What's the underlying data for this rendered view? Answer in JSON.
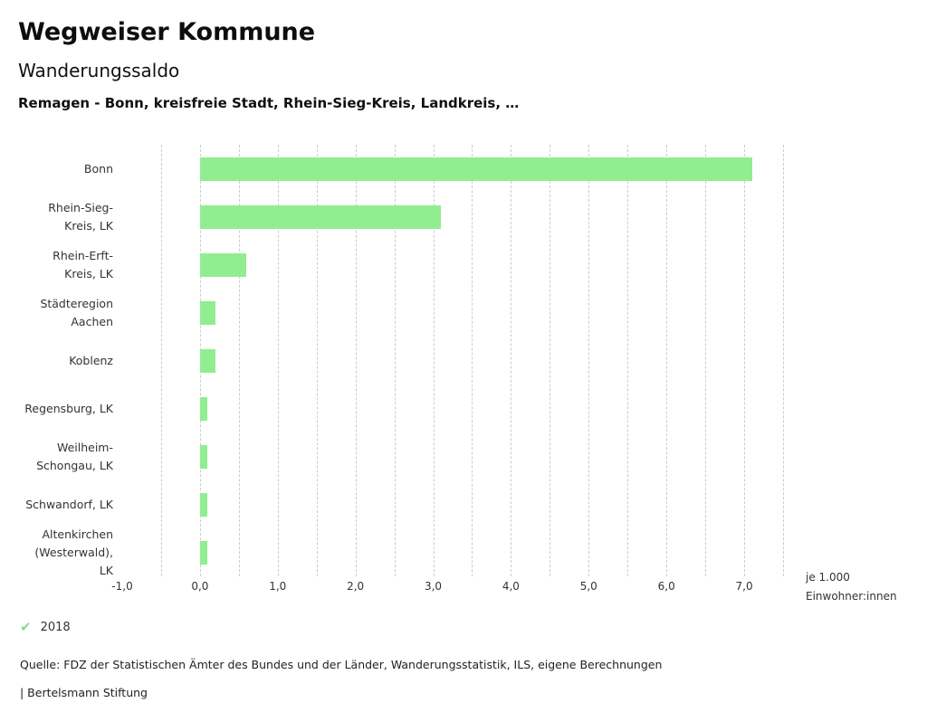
{
  "header": {
    "title": "Wegweiser Kommune",
    "subtitle": "Wanderungssaldo",
    "description": "Remagen - Bonn, kreisfreie Stadt, Rhein-Sieg-Kreis, Landkreis, …"
  },
  "chart_data": {
    "type": "bar",
    "orientation": "horizontal",
    "title": "Wanderungssaldo",
    "subtitle": "Remagen - Bonn, kreisfreie Stadt, Rhein-Sieg-Kreis, Landkreis, …",
    "categories": [
      "Bonn",
      "Rhein-Sieg-Kreis, LK",
      "Rhein-Erft-Kreis, LK",
      "Städteregion Aachen",
      "Koblenz",
      "Regensburg, LK",
      "Weilheim-Schongau, LK",
      "Schwandorf, LK",
      "Altenkirchen (Westerwald), LK"
    ],
    "category_lines": [
      [
        "Bonn"
      ],
      [
        "Rhein-Sieg-",
        "Kreis, LK"
      ],
      [
        "Rhein-Erft-",
        "Kreis, LK"
      ],
      [
        "Städteregion",
        "Aachen"
      ],
      [
        "Koblenz"
      ],
      [
        "Regensburg, LK"
      ],
      [
        "Weilheim-",
        "Schongau, LK"
      ],
      [
        "Schwandorf, LK"
      ],
      [
        "Altenkirchen",
        "(Westerwald),",
        "LK"
      ]
    ],
    "series_name": "2018",
    "values": [
      7.1,
      3.1,
      0.6,
      0.2,
      0.2,
      0.1,
      0.1,
      0.1,
      0.1
    ],
    "xlim": [
      -1.0,
      7.5
    ],
    "x_tick_values": [
      -1,
      0,
      1,
      2,
      3,
      4,
      5,
      6,
      7
    ],
    "x_ticks": [
      "-1,0",
      "0,0",
      "1,0",
      "2,0",
      "3,0",
      "4,0",
      "5,0",
      "6,0",
      "7,0"
    ],
    "grid": true,
    "grid_step": 0.5,
    "bar_color": "#90ee90",
    "xlabel": "je 1.000 Einwohner:innen",
    "axis_unit_lines": [
      "je 1.000",
      "Einwohner:innen"
    ],
    "legend_position": "bottom-left"
  },
  "legend": {
    "year": "2018",
    "check_color": "#8cd98c",
    "check_icon": "✔"
  },
  "footer": {
    "source": "Quelle: FDZ der Statistischen Ämter des Bundes und der Länder, Wanderungsstatistik, ILS, eigene Berechnungen",
    "attribution": "| Bertelsmann Stiftung"
  }
}
